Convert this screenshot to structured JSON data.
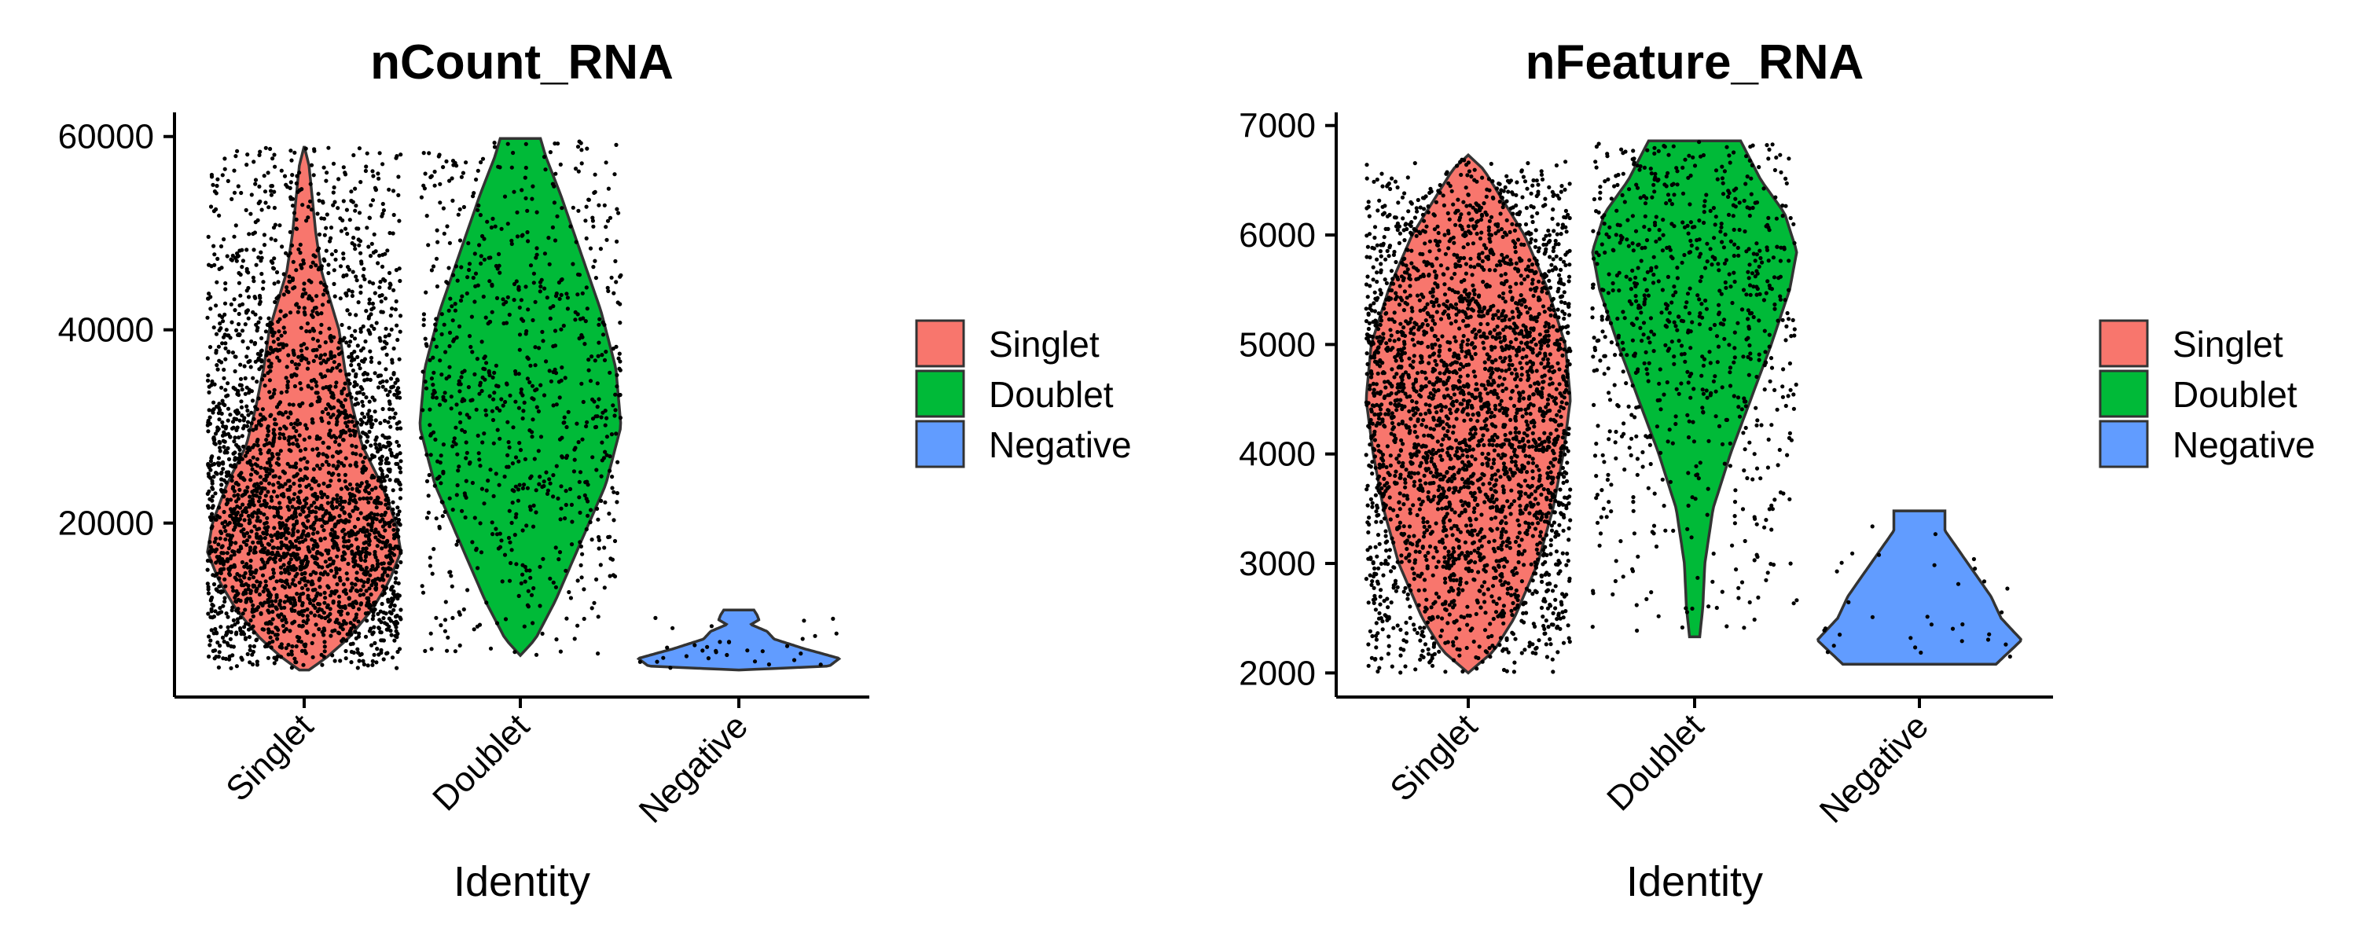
{
  "colors": {
    "Singlet": "#F8766D",
    "Doublet": "#00BA38",
    "Negative": "#619CFF",
    "outline": "#333333",
    "points": "#000000"
  },
  "chart_data": [
    {
      "type": "violin",
      "title": "nCount_RNA",
      "xlabel": "Identity",
      "ylabel": "",
      "categories": [
        "Singlet",
        "Doublet",
        "Negative"
      ],
      "yticks": [
        20000,
        40000,
        60000
      ],
      "ytick_labels": [
        "20000",
        "40000",
        "60000"
      ],
      "ylim": [
        2000,
        62500
      ],
      "legend": {
        "position": "right",
        "entries": [
          "Singlet",
          "Doublet",
          "Negative"
        ]
      },
      "series": [
        {
          "category": "Singlet",
          "range": [
            4800,
            59000
          ],
          "profile": [
            [
              4800,
              0.05
            ],
            [
              6000,
              0.22
            ],
            [
              8000,
              0.45
            ],
            [
              11000,
              0.7
            ],
            [
              14000,
              0.88
            ],
            [
              17000,
              1.0
            ],
            [
              20000,
              0.95
            ],
            [
              24000,
              0.8
            ],
            [
              28000,
              0.6
            ],
            [
              32000,
              0.5
            ],
            [
              36000,
              0.42
            ],
            [
              40000,
              0.36
            ],
            [
              42000,
              0.3
            ],
            [
              46000,
              0.18
            ],
            [
              50000,
              0.12
            ],
            [
              54000,
              0.08
            ],
            [
              57000,
              0.05
            ],
            [
              59000,
              0.0
            ]
          ],
          "jitter_range": [
            4800,
            59000
          ],
          "n_points": 3000
        },
        {
          "category": "Doublet",
          "range": [
            6300,
            59800
          ],
          "profile": [
            [
              6300,
              0.0
            ],
            [
              8000,
              0.15
            ],
            [
              12000,
              0.35
            ],
            [
              18000,
              0.6
            ],
            [
              24000,
              0.85
            ],
            [
              30000,
              1.0
            ],
            [
              36000,
              0.95
            ],
            [
              42000,
              0.8
            ],
            [
              48000,
              0.6
            ],
            [
              54000,
              0.4
            ],
            [
              58000,
              0.25
            ],
            [
              59800,
              0.2
            ]
          ],
          "jitter_range": [
            6300,
            59500
          ],
          "n_points": 800
        },
        {
          "category": "Negative",
          "range": [
            4800,
            11000
          ],
          "profile": [
            [
              4800,
              0.0
            ],
            [
              5200,
              0.9
            ],
            [
              6000,
              1.0
            ],
            [
              7000,
              0.65
            ],
            [
              8000,
              0.35
            ],
            [
              8800,
              0.28
            ],
            [
              9500,
              0.12
            ],
            [
              10000,
              0.2
            ],
            [
              10500,
              0.18
            ],
            [
              11000,
              0.15
            ]
          ],
          "jitter_range": [
            4900,
            10600
          ],
          "n_points": 32
        }
      ]
    },
    {
      "type": "violin",
      "title": "nFeature_RNA",
      "xlabel": "Identity",
      "ylabel": "",
      "categories": [
        "Singlet",
        "Doublet",
        "Negative"
      ],
      "yticks": [
        2000,
        3000,
        4000,
        5000,
        6000,
        7000
      ],
      "ytick_labels": [
        "2000",
        "3000",
        "4000",
        "5000",
        "6000",
        "7000"
      ],
      "ylim": [
        1780,
        7120
      ],
      "legend": {
        "position": "right",
        "entries": [
          "Singlet",
          "Doublet",
          "Negative"
        ]
      },
      "series": [
        {
          "category": "Singlet",
          "range": [
            2000,
            6730
          ],
          "profile": [
            [
              2000,
              0.0
            ],
            [
              2200,
              0.25
            ],
            [
              2500,
              0.45
            ],
            [
              3000,
              0.68
            ],
            [
              3500,
              0.83
            ],
            [
              4000,
              0.93
            ],
            [
              4500,
              1.0
            ],
            [
              5000,
              0.95
            ],
            [
              5500,
              0.78
            ],
            [
              6000,
              0.55
            ],
            [
              6300,
              0.35
            ],
            [
              6600,
              0.15
            ],
            [
              6730,
              0.0
            ]
          ],
          "jitter_range": [
            2000,
            6700
          ],
          "n_points": 3000
        },
        {
          "category": "Doublet",
          "range": [
            2330,
            6860
          ],
          "profile": [
            [
              2330,
              0.05
            ],
            [
              2600,
              0.08
            ],
            [
              3000,
              0.1
            ],
            [
              3500,
              0.18
            ],
            [
              4000,
              0.35
            ],
            [
              4500,
              0.55
            ],
            [
              5000,
              0.75
            ],
            [
              5500,
              0.93
            ],
            [
              5850,
              1.0
            ],
            [
              6200,
              0.88
            ],
            [
              6500,
              0.65
            ],
            [
              6860,
              0.45
            ]
          ],
          "jitter_range": [
            2350,
            6850
          ],
          "n_points": 800
        },
        {
          "category": "Negative",
          "range": [
            2080,
            3480
          ],
          "profile": [
            [
              2080,
              0.75
            ],
            [
              2300,
              1.0
            ],
            [
              2500,
              0.8
            ],
            [
              2700,
              0.7
            ],
            [
              2900,
              0.55
            ],
            [
              3100,
              0.4
            ],
            [
              3300,
              0.25
            ],
            [
              3480,
              0.25
            ]
          ],
          "jitter_range": [
            2100,
            3480
          ],
          "n_points": 32
        }
      ]
    }
  ]
}
